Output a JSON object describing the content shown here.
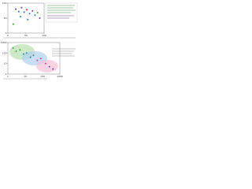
{
  "chart_data": [
    {
      "type": "scatter",
      "xlim": [
        0,
        100
      ],
      "ylim": [
        0,
        100
      ],
      "xticks": [
        0,
        50,
        100
      ],
      "yticks": [
        0,
        50,
        100
      ],
      "log": false,
      "x": [
        22,
        30,
        38,
        45,
        52,
        60,
        68,
        75,
        82,
        35,
        55,
        15,
        88
      ],
      "values": [
        80,
        72,
        85,
        70,
        78,
        65,
        74,
        60,
        68,
        55,
        45,
        30,
        50
      ],
      "colors": [
        "#6a3d9a",
        "#1f78b4",
        "#6a3d9a",
        "#1f78b4",
        "#e31a1c",
        "#1f78b4",
        "#6a3d9a",
        "#1f78b4",
        "#33a02c",
        "#1f78b4",
        "#1f78b4",
        "#33a02c",
        "#6a3d9a"
      ]
    },
    {
      "type": "scatter",
      "xlim": [
        1,
        1000
      ],
      "ylim": [
        1,
        1000
      ],
      "xticks": [
        1,
        10,
        100,
        1000
      ],
      "yticks": [
        1,
        10,
        100,
        1000
      ],
      "log": true,
      "x": [
        2,
        3,
        5,
        8,
        12,
        20,
        30,
        50,
        80,
        150,
        250,
        400
      ],
      "values": [
        300,
        150,
        200,
        80,
        100,
        40,
        60,
        20,
        30,
        10,
        5,
        3
      ],
      "colors": [
        "#33a02c",
        "#33a02c",
        "#33a02c",
        "#1f78b4",
        "#1f78b4",
        "#1f78b4",
        "#1f78b4",
        "#e7298a",
        "#e7298a",
        "#e7298a",
        "#6a3d9a",
        "#6a3d9a"
      ]
    }
  ]
}
